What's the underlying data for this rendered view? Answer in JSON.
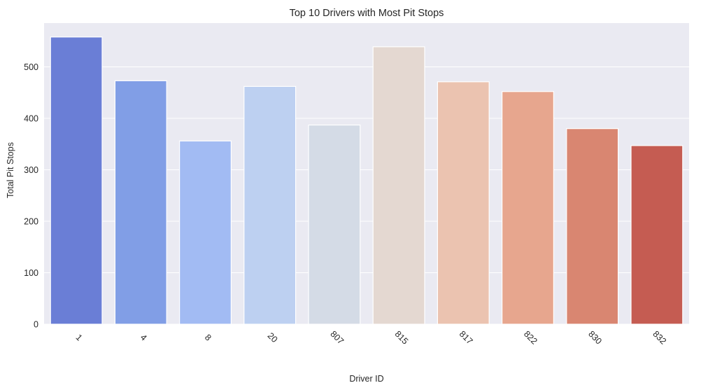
{
  "chart_data": {
    "type": "bar",
    "title": "Top 10 Drivers with Most Pit Stops",
    "xlabel": "Driver ID",
    "ylabel": "Total Pit Stops",
    "categories": [
      "1",
      "4",
      "8",
      "20",
      "807",
      "815",
      "817",
      "822",
      "830",
      "832"
    ],
    "values": [
      558,
      473,
      356,
      462,
      387,
      539,
      471,
      452,
      380,
      347
    ],
    "colors": [
      "#6a7ed6",
      "#819ee6",
      "#a2bbf3",
      "#bdd0f1",
      "#d4dbe6",
      "#e4d8d1",
      "#ebc3b0",
      "#e7a68e",
      "#d98671",
      "#c55c52"
    ],
    "ylim": [
      0,
      585
    ],
    "yticks": [
      0,
      100,
      200,
      300,
      400,
      500
    ],
    "grid": true,
    "background": "#eaeaf2",
    "gridline_color": "#ffffff"
  }
}
